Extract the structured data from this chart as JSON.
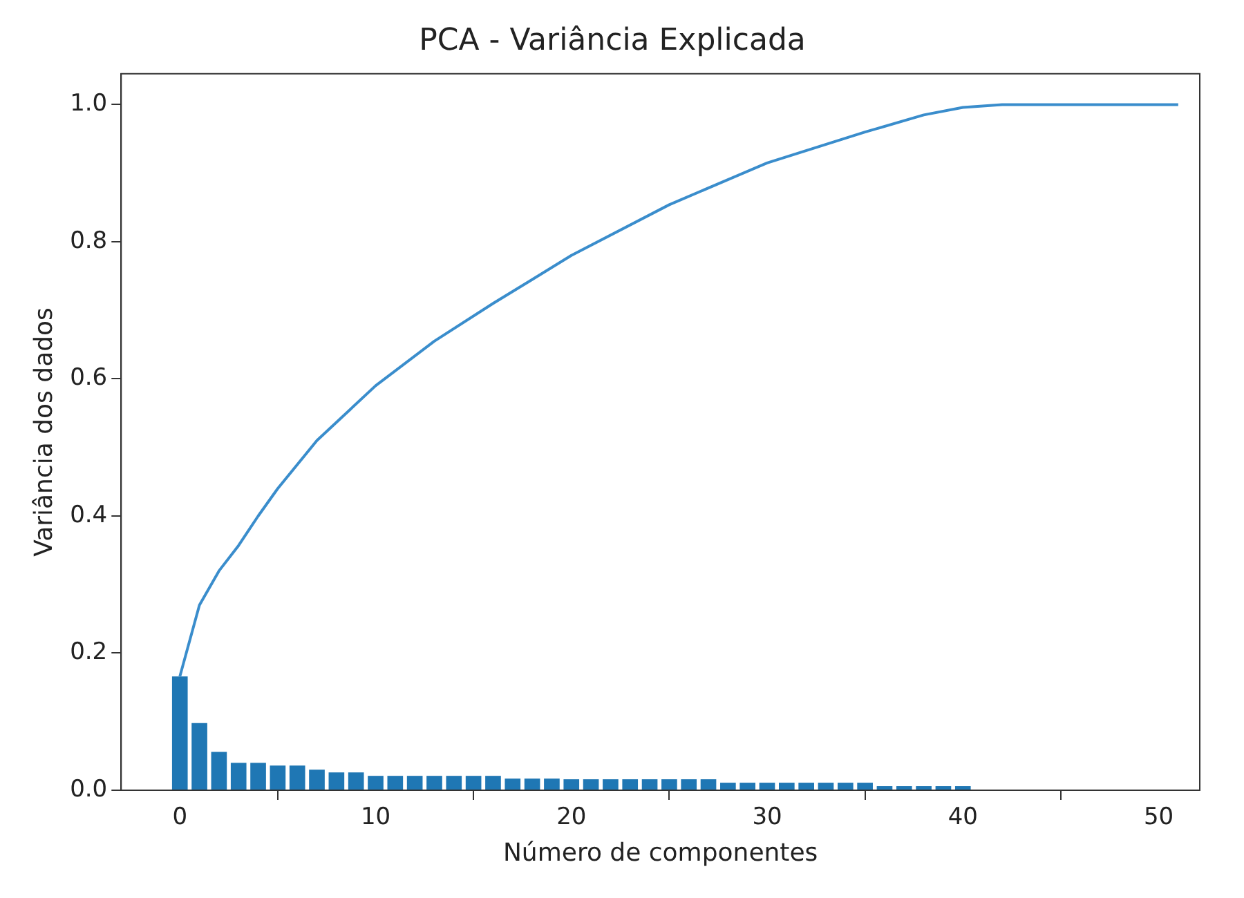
{
  "chart_data": {
    "type": "bar",
    "title": "PCA - Variância Explicada",
    "xlabel": "Número de componentes",
    "ylabel": "Variância dos dados",
    "xlim": [
      -3,
      52.1
    ],
    "xticks": [
      0,
      10,
      20,
      30,
      40,
      50
    ],
    "ylim": [
      0,
      1.045
    ],
    "yticks": [
      {
        "value": 0,
        "label": "0.0"
      },
      0.2,
      0.4,
      0.6,
      0.8,
      {
        "value": 1,
        "label": "1.0"
      }
    ],
    "grid": false,
    "legend": false,
    "marker": "none",
    "line_style": "solid",
    "series": [
      {
        "color": "#1f77b4",
        "x": [
          0,
          1,
          2,
          3,
          4,
          5,
          6,
          7,
          8,
          9,
          10,
          11,
          12,
          13,
          14,
          15,
          16,
          17,
          18,
          19,
          20,
          21,
          22,
          23,
          24,
          25,
          26,
          27,
          28,
          29,
          30,
          31,
          32,
          33,
          34,
          35,
          36,
          37,
          38,
          39,
          40
        ],
        "values": [
          0.166,
          0.098,
          0.056,
          0.04,
          0.04,
          0.036,
          0.036,
          0.03,
          0.026,
          0.026,
          0.021,
          0.021,
          0.021,
          0.021,
          0.021,
          0.021,
          0.021,
          0.017,
          0.017,
          0.017,
          0.016,
          0.016,
          0.016,
          0.016,
          0.016,
          0.016,
          0.016,
          0.016,
          0.011,
          0.011,
          0.011,
          0.011,
          0.011,
          0.011,
          0.011,
          0.011,
          0.006,
          0.006,
          0.006,
          0.006,
          0.006
        ]
      },
      {
        "type": "line",
        "color": "#3a8dcc",
        "x": [
          0,
          1,
          2,
          3,
          4,
          5,
          7,
          10,
          13,
          16,
          20,
          25,
          30,
          35,
          38,
          40,
          42,
          51
        ],
        "values": [
          0.166,
          0.27,
          0.32,
          0.357,
          0.4,
          0.44,
          0.51,
          0.59,
          0.655,
          0.71,
          0.78,
          0.854,
          0.915,
          0.96,
          0.985,
          0.996,
          1.0,
          1.0
        ]
      }
    ]
  }
}
